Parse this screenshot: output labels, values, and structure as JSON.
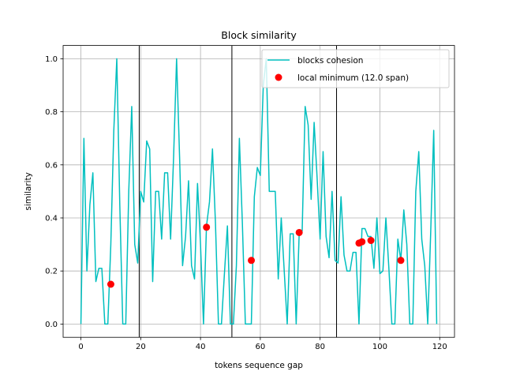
{
  "chart_data": {
    "type": "line",
    "title": "Block similarity",
    "xlabel": "tokens sequence gap",
    "ylabel": "similarity",
    "xlim": [
      -5.95,
      124.95
    ],
    "ylim": [
      -0.05,
      1.05
    ],
    "xticks": [
      0,
      20,
      40,
      60,
      80,
      100,
      120
    ],
    "yticks": [
      0.0,
      0.2,
      0.4,
      0.6,
      0.8,
      1.0
    ],
    "xtick_labels": [
      "0",
      "20",
      "40",
      "60",
      "80",
      "100",
      "120"
    ],
    "ytick_labels": [
      "0.0",
      "0.2",
      "0.4",
      "0.6",
      "0.8",
      "1.0"
    ],
    "grid": true,
    "legend_position": "top-right",
    "series": [
      {
        "name": "blocks cohesion",
        "kind": "line",
        "color": "#00bfbf",
        "x": [
          0,
          1,
          2,
          3,
          4,
          5,
          6,
          7,
          8,
          9,
          10,
          11,
          12,
          13,
          14,
          15,
          16,
          17,
          18,
          19,
          20,
          21,
          22,
          23,
          24,
          25,
          26,
          27,
          28,
          29,
          30,
          31,
          32,
          33,
          34,
          35,
          36,
          37,
          38,
          39,
          40,
          41,
          42,
          43,
          44,
          45,
          46,
          47,
          48,
          49,
          50,
          51,
          52,
          53,
          54,
          55,
          56,
          57,
          58,
          59,
          60,
          61,
          62,
          63,
          64,
          65,
          66,
          67,
          68,
          69,
          70,
          71,
          72,
          73,
          74,
          75,
          76,
          77,
          78,
          79,
          80,
          81,
          82,
          83,
          84,
          85,
          86,
          87,
          88,
          89,
          90,
          91,
          92,
          93,
          94,
          95,
          96,
          97,
          98,
          99,
          100,
          101,
          102,
          103,
          104,
          105,
          106,
          107,
          108,
          109,
          110,
          111,
          112,
          113,
          114,
          115,
          116,
          117,
          118,
          119
        ],
        "y": [
          0.0,
          0.7,
          0.2,
          0.45,
          0.57,
          0.16,
          0.21,
          0.21,
          0.0,
          0.0,
          0.3,
          0.73,
          1.0,
          0.45,
          0.0,
          0.0,
          0.5,
          0.82,
          0.3,
          0.23,
          0.5,
          0.46,
          0.69,
          0.66,
          0.16,
          0.5,
          0.5,
          0.32,
          0.57,
          0.57,
          0.32,
          0.63,
          1.0,
          0.63,
          0.22,
          0.33,
          0.54,
          0.22,
          0.17,
          0.53,
          0.3,
          0.0,
          0.37,
          0.46,
          0.66,
          0.38,
          0.0,
          0.0,
          0.19,
          0.37,
          0.0,
          0.0,
          0.22,
          0.7,
          0.38,
          0.0,
          0.0,
          0.0,
          0.48,
          0.59,
          0.56,
          0.9,
          1.0,
          0.5,
          0.5,
          0.5,
          0.17,
          0.4,
          0.2,
          0.0,
          0.34,
          0.34,
          0.0,
          0.34,
          0.35,
          0.82,
          0.75,
          0.47,
          0.76,
          0.55,
          0.32,
          0.65,
          0.33,
          0.25,
          0.5,
          0.24,
          0.23,
          0.48,
          0.26,
          0.2,
          0.2,
          0.27,
          0.27,
          0.0,
          0.36,
          0.36,
          0.33,
          0.33,
          0.21,
          0.4,
          0.19,
          0.2,
          0.4,
          0.21,
          0.0,
          0.0,
          0.32,
          0.24,
          0.43,
          0.3,
          0.0,
          0.0,
          0.5,
          0.65,
          0.32,
          0.22,
          0.0,
          0.35,
          0.73,
          0.0
        ]
      },
      {
        "name": "local minimum (12.0 span)",
        "kind": "scatter",
        "color": "#ff0000",
        "x": [
          10,
          42,
          57,
          73,
          93,
          94,
          97,
          107
        ],
        "y": [
          0.15,
          0.365,
          0.24,
          0.345,
          0.305,
          0.31,
          0.315,
          0.24
        ]
      }
    ],
    "vlines": [
      19.5,
      50.5,
      85.5
    ]
  }
}
